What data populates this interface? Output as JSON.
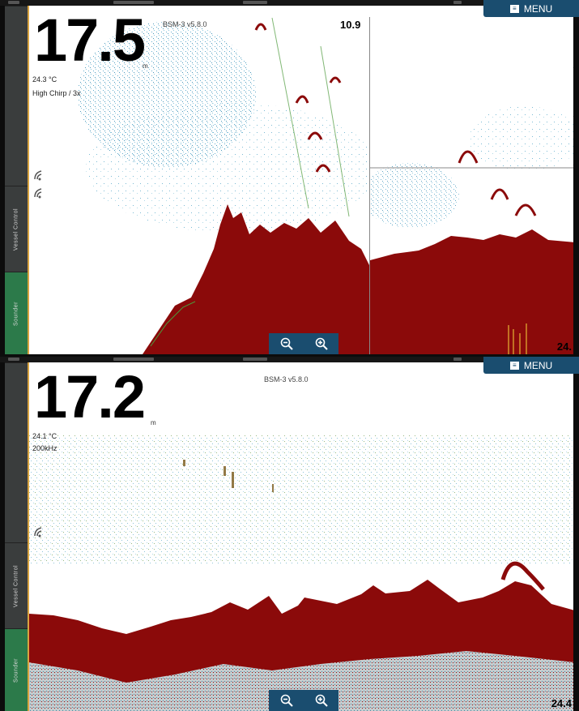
{
  "top_panel": {
    "depth": "17.5",
    "depth_unit": "m",
    "temperature": "24.3 °C",
    "mode": "High Chirp",
    "zoom_level": "/ 3x",
    "source": "BSM-3 v5.8.0",
    "range_value": "10.9",
    "bottom_value": "24.",
    "menu_label": "MENU",
    "side_tabs": [
      "Vessel Control",
      "Sounder"
    ],
    "icons": [
      "menu-icon",
      "zoom-out-icon",
      "zoom-in-icon",
      "transducer-icon"
    ],
    "colors": {
      "accent": "#1a4d6f",
      "bottom_echo": "#8b0a0a",
      "frame": "#d9a441",
      "sidebar_active": "#2c7a4a"
    }
  },
  "bottom_panel": {
    "depth": "17.2",
    "depth_unit": "m",
    "temperature": "24.1 °C",
    "frequency": "200kHz",
    "source": "BSM-3 v5.8.0",
    "bottom_value": "24.4",
    "menu_label": "MENU",
    "side_tabs": [
      "Vessel Control",
      "Sounder"
    ],
    "icons": [
      "menu-icon",
      "zoom-out-icon",
      "zoom-in-icon",
      "transducer-icon"
    ]
  }
}
